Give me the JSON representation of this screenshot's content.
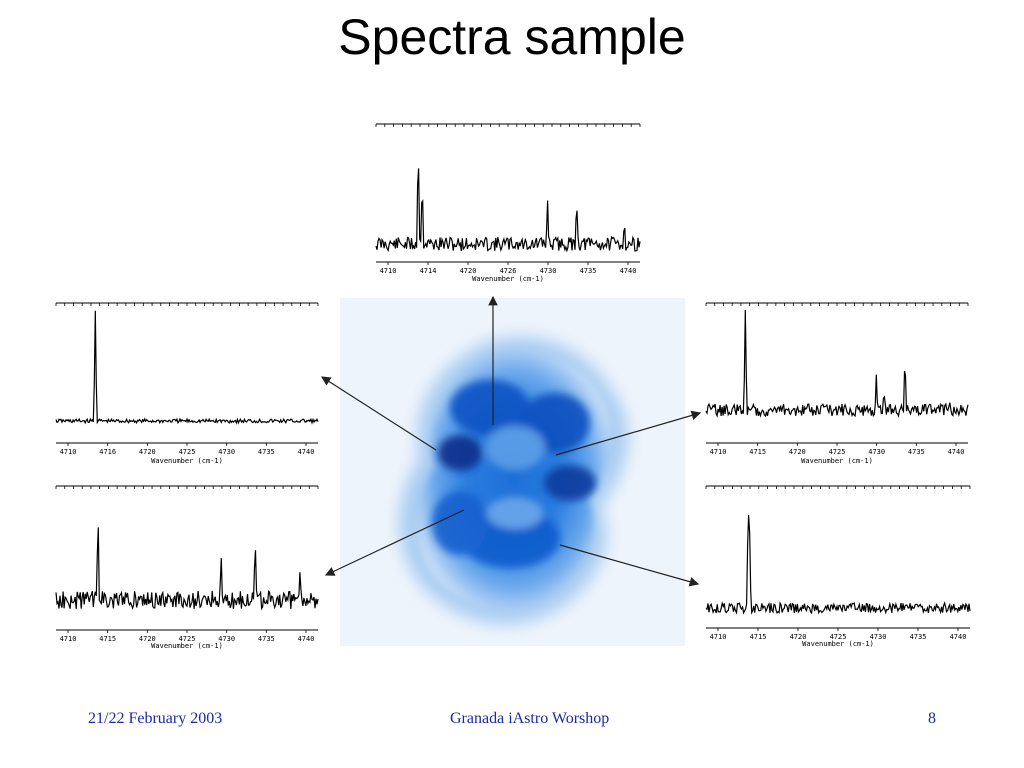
{
  "slide": {
    "title": "Spectra sample",
    "footer_left": "21/22 February 2003",
    "footer_center": "Granada iAstro  Worshop",
    "footer_right": "8"
  },
  "spectra": [
    {
      "id": "top",
      "ticks": [
        "4710",
        "4714",
        "4720",
        "4726",
        "4730",
        "4735",
        "4740"
      ],
      "xlabel": "Wavenumber (cm-1)"
    },
    {
      "id": "upper-left",
      "ticks": [
        "4710",
        "4716",
        "4720",
        "4725",
        "4730",
        "4735",
        "4740"
      ],
      "xlabel": "Wavenumber (cm-1)"
    },
    {
      "id": "upper-right",
      "ticks": [
        "4710",
        "4715",
        "4720",
        "4725",
        "4730",
        "4735",
        "4740"
      ],
      "xlabel": "Wavenumber (cm-1)"
    },
    {
      "id": "lower-left",
      "ticks": [
        "4710",
        "4715",
        "4720",
        "4725",
        "4730",
        "4735",
        "4740"
      ],
      "xlabel": "Wavenumber (cm-1)"
    },
    {
      "id": "lower-right",
      "ticks": [
        "4710",
        "4715",
        "4720",
        "4725",
        "4730",
        "4735",
        "4740"
      ],
      "xlabel": "Wavenumber (cm-1)"
    }
  ]
}
